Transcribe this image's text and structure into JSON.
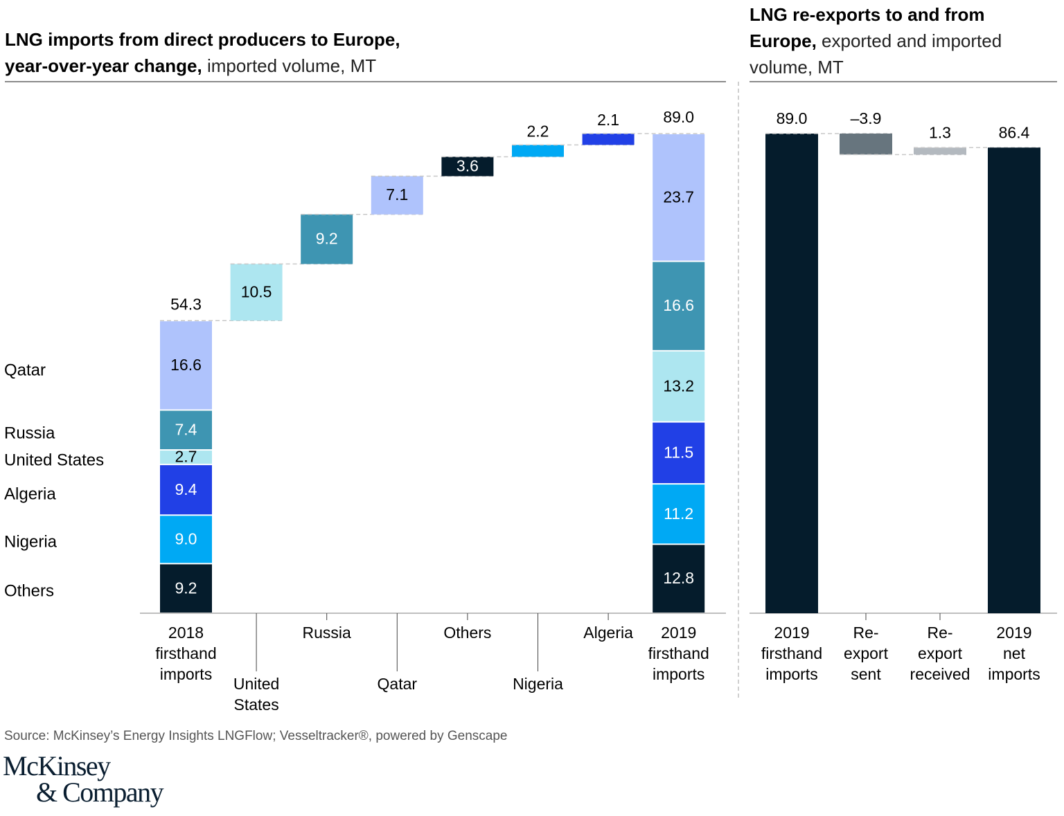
{
  "left_title": {
    "bold": "LNG imports from direct producers to Europe, year-over-year change,",
    "bold_line1": "LNG imports from direct producers to Europe,",
    "bold_line2": "year-over-year change,",
    "light": " imported volume, MT"
  },
  "right_title": {
    "bold_line1": "LNG re-exports to and from",
    "bold_line2": "Europe,",
    "light_line2": " exported and imported",
    "light_line3": "volume, MT"
  },
  "source": "Source: McKinsey’s Energy Insights LNGFlow; Vesseltracker®, powered by Genscape",
  "logo": {
    "line1": "McKinsey",
    "line2": "& Company"
  },
  "colors": {
    "Qatar": "#afc3fc",
    "Russia": "#3e95b2",
    "United States": "#ade6f0",
    "Algeria": "#2140e6",
    "Nigeria": "#00a9f4",
    "Others": "#051c2c",
    "reexport_sent": "#67757e",
    "reexport_received": "#b3b9bf",
    "total": "#051c2c"
  },
  "chart_data": [
    {
      "type": "bar",
      "subtype": "waterfall-stacked",
      "title": "LNG imports from direct producers to Europe, year-over-year change, imported volume, MT",
      "unit": "MT",
      "ylim": [
        0,
        89.0
      ],
      "grid": false,
      "segment_order": [
        "Others",
        "Nigeria",
        "Algeria",
        "United States",
        "Russia",
        "Qatar"
      ],
      "legend_labels": [
        "Qatar",
        "Russia",
        "United States",
        "Algeria",
        "Nigeria",
        "Others"
      ],
      "legend_placement": "left",
      "categories": [
        "2018 firsthand imports",
        "United States",
        "Russia",
        "Qatar",
        "Others",
        "Nigeria",
        "Algeria",
        "2019 firsthand imports"
      ],
      "category_label_lines": [
        [
          "2018",
          "firsthand",
          "imports"
        ],
        [
          "United",
          "States"
        ],
        [
          "Russia"
        ],
        [
          "Qatar"
        ],
        [
          "Others"
        ],
        [
          "Nigeria"
        ],
        [
          "Algeria"
        ],
        [
          "2019",
          "firsthand",
          "imports"
        ]
      ],
      "bars": [
        {
          "category": "2018 firsthand imports",
          "kind": "stacked",
          "total": 54.3,
          "total_label": "54.3",
          "segments": [
            {
              "name": "Others",
              "value": 9.2,
              "label": "9.2"
            },
            {
              "name": "Nigeria",
              "value": 9.0,
              "label": "9.0"
            },
            {
              "name": "Algeria",
              "value": 9.4,
              "label": "9.4"
            },
            {
              "name": "United States",
              "value": 2.7,
              "label": "2.7"
            },
            {
              "name": "Russia",
              "value": 7.4,
              "label": "7.4"
            },
            {
              "name": "Qatar",
              "value": 16.6,
              "label": "16.6"
            }
          ]
        },
        {
          "category": "United States",
          "kind": "delta",
          "value": 10.5,
          "label": "10.5",
          "color_key": "United States",
          "label_pos": "inside"
        },
        {
          "category": "Russia",
          "kind": "delta",
          "value": 9.2,
          "label": "9.2",
          "color_key": "Russia",
          "label_pos": "inside"
        },
        {
          "category": "Qatar",
          "kind": "delta",
          "value": 7.1,
          "label": "7.1",
          "color_key": "Qatar",
          "label_pos": "inside"
        },
        {
          "category": "Others",
          "kind": "delta",
          "value": 3.6,
          "label": "3.6",
          "color_key": "Others",
          "label_pos": "inside"
        },
        {
          "category": "Nigeria",
          "kind": "delta",
          "value": 2.2,
          "label": "2.2",
          "color_key": "Nigeria",
          "label_pos": "above"
        },
        {
          "category": "Algeria",
          "kind": "delta",
          "value": 2.1,
          "label": "2.1",
          "color_key": "Algeria",
          "label_pos": "above"
        },
        {
          "category": "2019 firsthand imports",
          "kind": "stacked",
          "total": 89.0,
          "total_label": "89.0",
          "segments": [
            {
              "name": "Others",
              "value": 12.8,
              "label": "12.8"
            },
            {
              "name": "Nigeria",
              "value": 11.2,
              "label": "11.2"
            },
            {
              "name": "Algeria",
              "value": 11.5,
              "label": "11.5"
            },
            {
              "name": "United States",
              "value": 13.2,
              "label": "13.2"
            },
            {
              "name": "Russia",
              "value": 16.6,
              "label": "16.6"
            },
            {
              "name": "Qatar",
              "value": 23.7,
              "label": "23.7"
            }
          ]
        }
      ]
    },
    {
      "type": "bar",
      "subtype": "waterfall",
      "title": "LNG re-exports to and from Europe, exported and imported volume, MT",
      "unit": "MT",
      "ylim": [
        0,
        89.0
      ],
      "grid": false,
      "categories": [
        "2019 firsthand imports",
        "Re-export sent",
        "Re-export received",
        "2019 net imports"
      ],
      "category_label_lines": [
        [
          "2019",
          "firsthand",
          "imports"
        ],
        [
          "Re-",
          "export",
          "sent"
        ],
        [
          "Re-",
          "export",
          "received"
        ],
        [
          "2019",
          "net",
          "imports"
        ]
      ],
      "bars": [
        {
          "category": "2019 firsthand imports",
          "kind": "total",
          "value": 89.0,
          "label": "89.0",
          "color_key": "total"
        },
        {
          "category": "Re-export sent",
          "kind": "delta",
          "value": -3.9,
          "label": "–3.9",
          "color_key": "reexport_sent"
        },
        {
          "category": "Re-export received",
          "kind": "delta",
          "value": 1.3,
          "label": "1.3",
          "color_key": "reexport_received"
        },
        {
          "category": "2019 net imports",
          "kind": "total",
          "value": 86.4,
          "label": "86.4",
          "color_key": "total"
        }
      ]
    }
  ]
}
